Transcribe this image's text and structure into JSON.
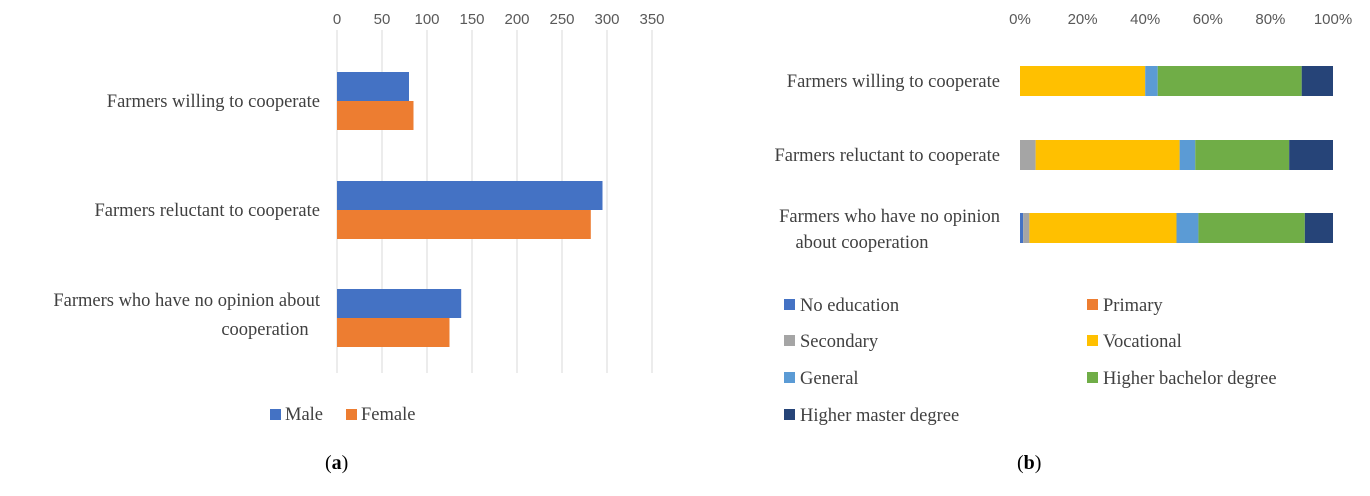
{
  "chart_data": [
    {
      "type": "bar",
      "orientation": "horizontal",
      "categories": [
        "Farmers willing to cooperate",
        "Farmers reluctant to cooperate",
        "Farmers who have no opinion about cooperation"
      ],
      "series": [
        {
          "name": "Male",
          "values": [
            80,
            295,
            138
          ]
        },
        {
          "name": "Female",
          "values": [
            85,
            282,
            125
          ]
        }
      ],
      "xticks": [
        "0",
        "50",
        "100",
        "150",
        "200",
        "250",
        "300",
        "350"
      ],
      "xlim": [
        0,
        350
      ],
      "grid": true,
      "legend": "bottom",
      "caption": "a"
    },
    {
      "type": "bar",
      "orientation": "horizontal",
      "stacked": "100%",
      "categories": [
        "Farmers willing to cooperate",
        "Farmers reluctant to cooperate",
        "Farmers who have no opinion about cooperation"
      ],
      "series": [
        {
          "name": "No education",
          "values": [
            0,
            0,
            1
          ]
        },
        {
          "name": "Primary",
          "values": [
            0,
            0,
            0
          ]
        },
        {
          "name": "Secondary",
          "values": [
            0,
            5,
            2
          ]
        },
        {
          "name": "Vocational",
          "values": [
            40,
            46,
            47
          ]
        },
        {
          "name": "General",
          "values": [
            4,
            5,
            7
          ]
        },
        {
          "name": "Higher bachelor degree",
          "values": [
            46,
            30,
            34
          ]
        },
        {
          "name": "Higher master degree",
          "values": [
            10,
            14,
            9
          ]
        }
      ],
      "xticks": [
        "0%",
        "20%",
        "40%",
        "60%",
        "80%",
        "100%"
      ],
      "xlim": [
        0,
        100
      ],
      "grid": false,
      "legend": "bottom",
      "caption": "b"
    }
  ],
  "colors": {
    "Male": "#4472c4",
    "Female": "#ed7d31",
    "No education": "#4472c4",
    "Primary": "#ed7d31",
    "Secondary": "#a5a5a5",
    "Vocational": "#ffc000",
    "General": "#5b9bd5",
    "Higher bachelor degree": "#70ad47",
    "Higher master degree": "#264478"
  }
}
